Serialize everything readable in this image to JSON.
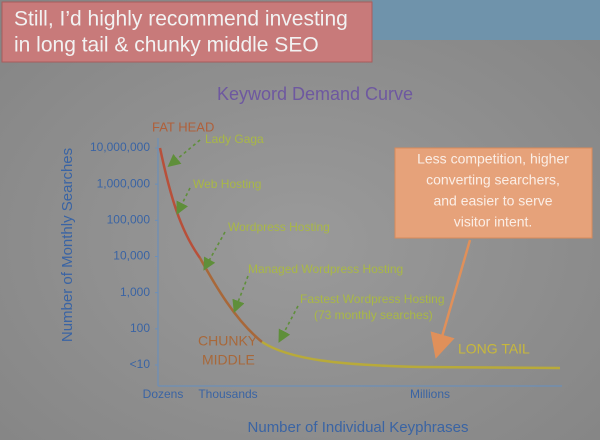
{
  "headline": [
    "Still, I’d highly recommend investing",
    "in long tail & chunky middle SEO"
  ],
  "chart_data": {
    "type": "line",
    "title": "Keyword Demand Curve",
    "y_label": "Number of Monthly Searches",
    "x_label": "Number of Individual Keyphrases",
    "y_scale": "log",
    "ylim": [
      10,
      10000000
    ],
    "yticks": [
      {
        "value": 10,
        "label": "<10"
      },
      100,
      {
        "value": 1000,
        "label": "1,000"
      },
      {
        "value": 10000,
        "label": "10,000"
      },
      {
        "value": 100000,
        "label": "100,000"
      },
      {
        "value": 1000000,
        "label": "1,000,000"
      },
      {
        "value": 10000000,
        "label": "10,000,000"
      }
    ],
    "x_tick_labels": [
      "Dozens",
      "Thousands",
      "Millions"
    ],
    "annotations": [
      "FAT HEAD",
      "Lady Gaga",
      "Web Hosting",
      "Wordpress Hosting",
      "Managed Wordpress Hosting",
      "Fastest Wordpress Hosting",
      "(73 monthly searches)",
      "CHUNKY",
      "MIDDLE",
      "LONG TAIL"
    ],
    "callout": [
      "Less competition, higher",
      "converting searchers,",
      "and easier to serve",
      "visitor intent."
    ]
  }
}
